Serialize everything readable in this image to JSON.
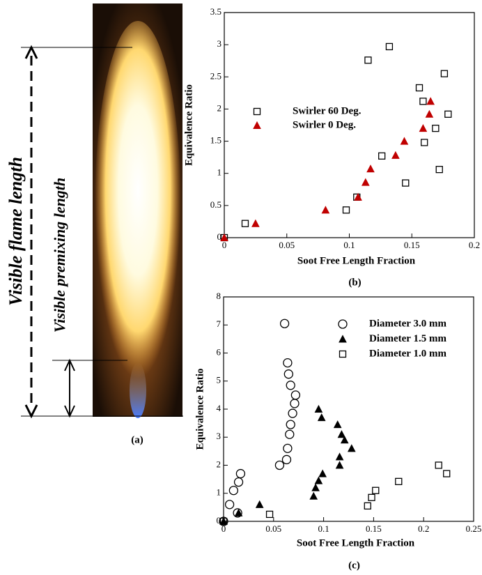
{
  "photo": {
    "flame_length": "Visible flame length",
    "premixing_length": "Visible premixing length",
    "caption": "(a)"
  },
  "chart_data": [
    {
      "type": "scatter",
      "caption": "(b)",
      "x_label": "Soot Free Length Fraction",
      "y_label": "Equivalence Ratio",
      "xlim": [
        0,
        0.2
      ],
      "xticks": [
        0,
        0.05,
        0.1,
        0.15,
        0.2
      ],
      "ylim": [
        0,
        3.5
      ],
      "yticks": [
        0,
        0.5,
        1,
        1.5,
        2,
        2.5,
        3,
        3.5
      ],
      "series": [
        {
          "name": "Swirler 60 Deg.",
          "color": "#000000",
          "marker": "square",
          "filled": false,
          "x": [
            0,
            0.0167,
            0.0975,
            0.106,
            0.115,
            0.132,
            0.126,
            0.145,
            0.156,
            0.159,
            0.16,
            0.176,
            0.179,
            0.169,
            0.172
          ],
          "values": [
            0,
            0.22,
            0.43,
            0.63,
            2.76,
            2.97,
            1.27,
            0.85,
            2.33,
            2.12,
            1.48,
            2.55,
            1.92,
            1.7,
            1.06
          ]
        },
        {
          "name": "Swirler 0 Deg.",
          "color": "#c00000",
          "marker": "triangle",
          "filled": true,
          "x": [
            0,
            0.025,
            0.081,
            0.107,
            0.113,
            0.117,
            0.137,
            0.144,
            0.159,
            0.164,
            0.165
          ],
          "values": [
            0,
            0.22,
            0.43,
            0.63,
            0.86,
            1.07,
            1.28,
            1.5,
            1.7,
            1.92,
            2.12
          ]
        }
      ]
    },
    {
      "type": "scatter",
      "caption": "(c)",
      "x_label": "Soot Free Length Fraction",
      "y_label": "Equivalence Ratio",
      "xlim": [
        0,
        0.25
      ],
      "xticks": [
        0,
        0.05,
        0.1,
        0.15,
        0.2,
        0.25
      ],
      "ylim": [
        0,
        8
      ],
      "yticks": [
        0,
        1,
        2,
        3,
        4,
        5,
        6,
        7,
        8
      ],
      "series": [
        {
          "name": "Diameter 3.0 mm",
          "color": "#000000",
          "marker": "circle",
          "filled": false,
          "x": [
            0,
            0.014,
            0.006,
            0.01,
            0.015,
            0.017,
            0.056,
            0.063,
            0.064,
            0.066,
            0.067,
            0.069,
            0.071,
            0.072,
            0.067,
            0.065,
            0.064,
            0.061
          ],
          "values": [
            0,
            0.3,
            0.6,
            1.1,
            1.4,
            1.7,
            2.0,
            2.2,
            2.6,
            3.1,
            3.45,
            3.85,
            4.2,
            4.5,
            4.85,
            5.25,
            5.65,
            7.05
          ]
        },
        {
          "name": "Diameter 1.5 mm",
          "color": "#000000",
          "marker": "triangle",
          "filled": true,
          "x": [
            0,
            0.015,
            0.036,
            0.09,
            0.092,
            0.095,
            0.099,
            0.095,
            0.098,
            0.114,
            0.118,
            0.121,
            0.128,
            0.116,
            0.116
          ],
          "values": [
            0,
            0.3,
            0.6,
            0.9,
            1.2,
            1.45,
            1.7,
            4.0,
            3.7,
            3.45,
            3.1,
            2.9,
            2.6,
            2.3,
            2.0
          ]
        },
        {
          "name": "Diameter 1.0 mm",
          "color": "#000000",
          "marker": "square",
          "filled": false,
          "x": [
            0,
            0.046,
            0.144,
            0.148,
            0.152,
            0.175,
            0.215,
            0.223
          ],
          "values": [
            0,
            0.25,
            0.55,
            0.85,
            1.1,
            1.42,
            2.0,
            1.7
          ]
        }
      ]
    }
  ]
}
